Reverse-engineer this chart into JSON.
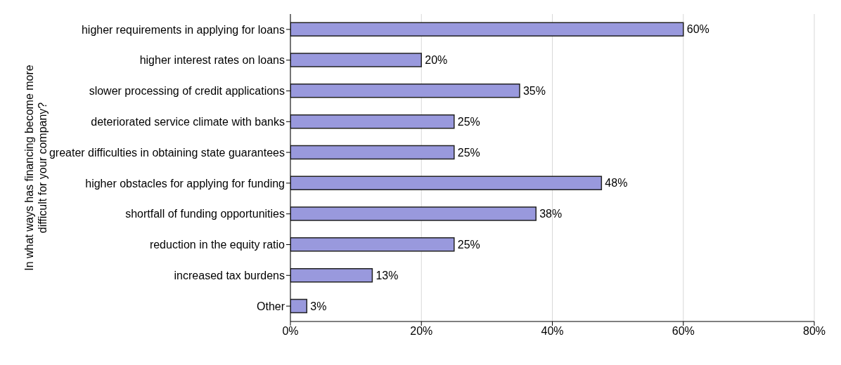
{
  "chart_data": {
    "type": "bar",
    "orientation": "horizontal",
    "ylabel": "In what ways has financing become more difficult for your company?",
    "categories": [
      "higher requirements in applying for loans",
      "higher interest rates on loans",
      "slower processing of credit applications",
      "deteriorated service climate with banks",
      "greater difficulties in obtaining state guarantees",
      "higher obstacles for applying for funding",
      "shortfall of funding opportunities",
      "reduction in the equity ratio",
      "increased tax burdens",
      "Other"
    ],
    "values": [
      60,
      20,
      35,
      25,
      25,
      47.5,
      37.5,
      25,
      12.5,
      2.5
    ],
    "value_labels": [
      "60%",
      "20%",
      "35%",
      "25%",
      "25%",
      "48%",
      "38%",
      "25%",
      "13%",
      "3%"
    ],
    "color": "#9999dd",
    "xlim": [
      0,
      80
    ],
    "xticks": [
      {
        "value": 0,
        "label": "0%"
      },
      {
        "value": 20,
        "label": "20%"
      },
      {
        "value": 40,
        "label": "40%"
      },
      {
        "value": 60,
        "label": "60%"
      },
      {
        "value": 80,
        "label": "80%"
      }
    ],
    "grid": "x",
    "legend": false
  }
}
